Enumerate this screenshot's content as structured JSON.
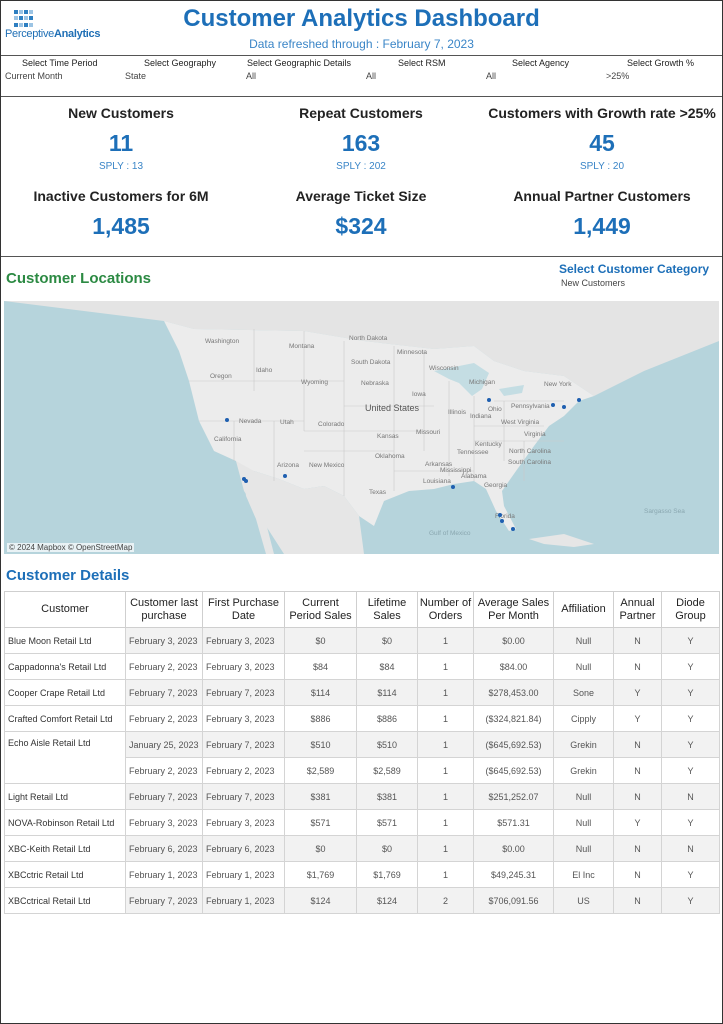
{
  "header": {
    "logo_text_light": "Perceptive",
    "logo_text_bold": "Analytics",
    "title": "Customer Analytics Dashboard",
    "subtitle": "Data refreshed through : February 7, 2023"
  },
  "filters": [
    {
      "label": "Select Time Period",
      "value": "Current Month"
    },
    {
      "label": "Select Geography",
      "value": "State"
    },
    {
      "label": "Select Geographic Details",
      "value": "All"
    },
    {
      "label": "Select RSM",
      "value": "All"
    },
    {
      "label": "Select Agency",
      "value": "All"
    },
    {
      "label": "Select Growth %",
      "value": ">25%"
    }
  ],
  "kpis": [
    {
      "title": "New Customers",
      "value": "11",
      "sply": "SPLY : 13"
    },
    {
      "title": "Repeat Customers",
      "value": "163",
      "sply": "SPLY : 202"
    },
    {
      "title": "Customers with Growth rate >25%",
      "value": "45",
      "sply": "SPLY : 20"
    },
    {
      "title": "Inactive Customers for 6M",
      "value": "1,485"
    },
    {
      "title": "Average Ticket Size",
      "value": "$324"
    },
    {
      "title": "Annual Partner Customers",
      "value": "1,449"
    }
  ],
  "locations": {
    "title": "Customer Locations",
    "category_label": "Select Customer Category",
    "category_value": "New Customers",
    "credit": "© 2024 Mapbox © OpenStreetMap",
    "country_label": "United States",
    "map_labels": [
      "Washington",
      "Montana",
      "North Dakota",
      "Minnesota",
      "Oregon",
      "Idaho",
      "South Dakota",
      "Wisconsin",
      "Michigan",
      "Wyoming",
      "Nebraska",
      "Iowa",
      "Ohio",
      "Pennsylvania",
      "New York",
      "Nevada",
      "Utah",
      "Colorado",
      "Kansas",
      "Missouri",
      "Illinois",
      "Indiana",
      "Kentucky",
      "West Virginia",
      "Virginia",
      "California",
      "Arizona",
      "New Mexico",
      "Oklahoma",
      "Arkansas",
      "Tennessee",
      "North Carolina",
      "South Carolina",
      "Texas",
      "Louisiana",
      "Mississippi",
      "Alabama",
      "Georgia",
      "Florida",
      "Gulf of Mexico",
      "Sargasso Sea"
    ],
    "marker_color": "#1f5fb0",
    "markers": [
      {
        "name": "Reno area"
      },
      {
        "name": "Los Angeles area"
      },
      {
        "name": "San Diego area"
      },
      {
        "name": "Phoenix area"
      },
      {
        "name": "Baton Rouge area"
      },
      {
        "name": "Detroit area"
      },
      {
        "name": "Philadelphia area"
      },
      {
        "name": "New Jersey area"
      },
      {
        "name": "New York area"
      },
      {
        "name": "Tampa area"
      },
      {
        "name": "Sarasota area"
      },
      {
        "name": "Miami area"
      }
    ]
  },
  "details": {
    "title": "Customer Details",
    "columns": [
      "Customer",
      "Customer last purchase",
      "First Purchase Date",
      "Current Period Sales",
      "Lifetime Sales",
      "Number of Orders",
      "Average Sales Per Month",
      "Affiliation",
      "Annual Partner",
      "Diode Group"
    ],
    "rows": [
      {
        "customer": "Blue Moon Retail Ltd",
        "last": "February 3, 2023",
        "first": "February 3, 2023",
        "current": "$0",
        "lifetime": "$0",
        "orders": "1",
        "avg": "$0.00",
        "aff": "Null",
        "partner": "N",
        "diode": "Y"
      },
      {
        "customer": "Cappadonna's Retail Ltd",
        "last": "February 2, 2023",
        "first": "February 3, 2023",
        "current": "$84",
        "lifetime": "$84",
        "orders": "1",
        "avg": "$84.00",
        "aff": "Null",
        "partner": "N",
        "diode": "Y"
      },
      {
        "customer": "Cooper Crape Retail Ltd",
        "last": "February 7, 2023",
        "first": "February 7, 2023",
        "current": "$114",
        "lifetime": "$114",
        "orders": "1",
        "avg": "$278,453.00",
        "aff": "Sone",
        "partner": "Y",
        "diode": "Y"
      },
      {
        "customer": "Crafted Comfort Retail Ltd",
        "last": "February 2, 2023",
        "first": "February 3, 2023",
        "current": "$886",
        "lifetime": "$886",
        "orders": "1",
        "avg": "($324,821.84)",
        "aff": "Cipply",
        "partner": "Y",
        "diode": "Y"
      },
      {
        "customer": "Echo Aisle  Retail Ltd",
        "last": "January 25, 2023",
        "first": "February 7, 2023",
        "current": "$510",
        "lifetime": "$510",
        "orders": "1",
        "avg": "($645,692.53)",
        "aff": "Grekin",
        "partner": "N",
        "diode": "Y"
      },
      {
        "customer": "",
        "last": "February 2, 2023",
        "first": "February 2, 2023",
        "current": "$2,589",
        "lifetime": "$2,589",
        "orders": "1",
        "avg": "($645,692.53)",
        "aff": "Grekin",
        "partner": "N",
        "diode": "Y"
      },
      {
        "customer": "Light Retail Ltd",
        "last": "February 7, 2023",
        "first": "February 7, 2023",
        "current": "$381",
        "lifetime": "$381",
        "orders": "1",
        "avg": "$251,252.07",
        "aff": "Null",
        "partner": "N",
        "diode": "N"
      },
      {
        "customer": "NOVA-Robinson Retail Ltd",
        "last": "February 3, 2023",
        "first": "February 3, 2023",
        "current": "$571",
        "lifetime": "$571",
        "orders": "1",
        "avg": "$571.31",
        "aff": "Null",
        "partner": "Y",
        "diode": "Y"
      },
      {
        "customer": "XBC-Keith Retail Ltd",
        "last": "February 6, 2023",
        "first": "February 6, 2023",
        "current": "$0",
        "lifetime": "$0",
        "orders": "1",
        "avg": "$0.00",
        "aff": "Null",
        "partner": "N",
        "diode": "N"
      },
      {
        "customer": "XBCctric Retail Ltd",
        "last": "February 1, 2023",
        "first": "February 1, 2023",
        "current": "$1,769",
        "lifetime": "$1,769",
        "orders": "1",
        "avg": "$49,245.31",
        "aff": "El Inc",
        "partner": "N",
        "diode": "Y"
      },
      {
        "customer": "XBCctrical Retail Ltd",
        "last": "February 7, 2023",
        "first": "February 1, 2023",
        "current": "$124",
        "lifetime": "$124",
        "orders": "2",
        "avg": "$706,091.56",
        "aff": "US",
        "partner": "N",
        "diode": "Y"
      }
    ]
  }
}
